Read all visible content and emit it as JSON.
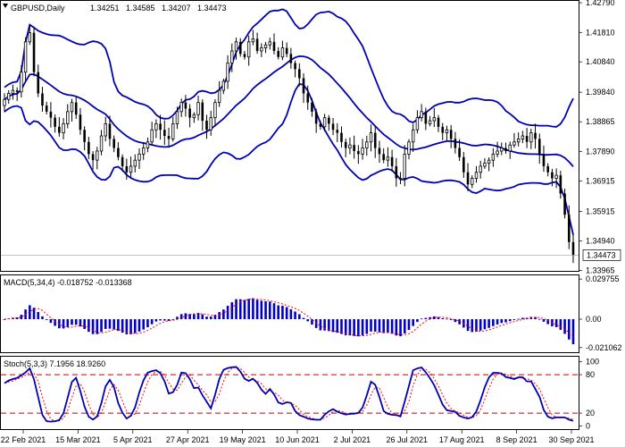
{
  "chart_data": [
    {
      "type": "candlestick",
      "panel": "price",
      "symbol": "GBPUSD,Daily",
      "ohlc_text": [
        "1.34251",
        "1.34585",
        "1.34207",
        "1.34473"
      ],
      "current_price": "1.34473",
      "y_ticks": [
        "1.42790",
        "1.41810",
        "1.40840",
        "1.39840",
        "1.38865",
        "1.37890",
        "1.36915",
        "1.35915",
        "1.34940",
        "1.33965"
      ],
      "ylim": [
        1.3395,
        1.4285
      ],
      "overlay": "Bollinger Bands",
      "closes": [
        1.396,
        1.398,
        1.399,
        1.3985,
        1.405,
        1.415,
        1.418,
        1.405,
        1.398,
        1.394,
        1.392,
        1.39,
        1.387,
        1.385,
        1.388,
        1.392,
        1.395,
        1.391,
        1.386,
        1.382,
        1.378,
        1.376,
        1.379,
        1.384,
        1.388,
        1.383,
        1.38,
        1.377,
        1.374,
        1.372,
        1.374,
        1.376,
        1.378,
        1.38,
        1.382,
        1.386,
        1.388,
        1.386,
        1.384,
        1.383,
        1.388,
        1.392,
        1.395,
        1.393,
        1.39,
        1.391,
        1.395,
        1.389,
        1.386,
        1.39,
        1.395,
        1.399,
        1.402,
        1.408,
        1.412,
        1.415,
        1.411,
        1.41,
        1.415,
        1.416,
        1.412,
        1.413,
        1.414,
        1.415,
        1.412,
        1.41,
        1.413,
        1.411,
        1.408,
        1.406,
        1.403,
        1.398,
        1.395,
        1.392,
        1.388,
        1.387,
        1.39,
        1.388,
        1.386,
        1.385,
        1.382,
        1.38,
        1.381,
        1.379,
        1.378,
        1.38,
        1.382,
        1.385,
        1.38,
        1.378,
        1.376,
        1.377,
        1.374,
        1.37,
        1.37,
        1.378,
        1.382,
        1.386,
        1.39,
        1.392,
        1.388,
        1.389,
        1.39,
        1.387,
        1.385,
        1.386,
        1.383,
        1.38,
        1.377,
        1.372,
        1.368,
        1.37,
        1.372,
        1.374,
        1.375,
        1.376,
        1.378,
        1.379,
        1.38,
        1.379,
        1.381,
        1.382,
        1.383,
        1.384,
        1.382,
        1.385,
        1.383,
        1.378,
        1.374,
        1.372,
        1.37,
        1.371,
        1.365,
        1.358,
        1.349,
        1.3447
      ],
      "chart_pos": [
        0,
        0.05,
        0.1,
        0.15,
        0.19,
        0.24,
        0.29,
        0.33,
        0.38,
        0.42,
        0.47,
        0.52,
        0.56,
        0.61,
        0.66,
        0.7,
        0.75,
        0.8,
        0.84,
        0.89,
        0.94,
        0.98,
        1.03,
        1.07,
        1.12,
        1.17,
        1.21,
        1.26,
        1.31,
        1.35,
        1.4,
        1.45,
        1.49,
        1.54,
        1.59,
        1.63,
        1.68,
        1.72,
        1.77,
        1.82,
        1.86,
        1.91,
        1.96,
        2.0,
        2.05,
        2.1,
        2.14,
        2.19,
        2.24,
        2.28,
        2.33,
        2.37,
        2.42,
        2.47,
        2.51,
        2.56,
        2.61,
        2.65,
        2.7,
        2.75,
        2.79,
        2.84,
        2.89,
        2.93,
        2.98,
        3.02,
        3.07,
        3.12,
        3.16,
        3.21,
        3.26,
        3.3,
        3.35,
        3.4,
        3.44,
        3.49,
        3.54,
        3.58,
        3.63,
        3.67,
        3.72,
        3.77,
        3.81,
        3.86,
        3.91,
        3.95,
        4.0,
        4.05,
        4.09,
        4.14,
        4.19,
        4.23,
        4.28,
        4.32,
        4.37,
        4.42,
        4.46,
        4.51,
        4.56,
        4.6,
        4.65,
        4.7,
        4.74,
        4.79,
        4.84,
        4.88,
        4.93,
        4.97,
        5.02,
        5.07,
        5.11,
        5.16,
        5.21,
        5.25,
        5.3,
        5.35,
        5.39,
        5.44,
        5.49,
        5.53,
        5.58,
        5.62,
        5.67,
        5.72,
        5.76,
        5.81,
        5.86,
        5.9,
        5.95,
        6.0,
        6.04,
        6.09,
        6.14,
        6.18,
        6.23,
        6.27
      ]
    },
    {
      "type": "bar",
      "panel": "macd",
      "label": "MACD(5,34,4) -0.018752 -0.013368",
      "y_ticks": [
        "0.029755",
        "0.00",
        "-0.021062"
      ],
      "ylim": [
        -0.0245,
        0.0325
      ]
    },
    {
      "type": "line",
      "panel": "stochastic",
      "label": "Stoch(5,3,3) 7.1956 18.9260",
      "y_ticks": [
        "100",
        "80",
        "20",
        "0"
      ],
      "ylim": [
        -5,
        108
      ],
      "levels": [
        80,
        20
      ]
    }
  ],
  "x_ticks": [
    "22 Feb 2021",
    "15 Mar 2021",
    "5 Apr 2021",
    "27 Apr 2021",
    "19 May 2021",
    "10 Jun 2021",
    "2 Jul 2021",
    "26 Jul 2021",
    "17 Aug 2021",
    "8 Sep 2021",
    "30 Sep 2021"
  ],
  "colors": {
    "candle": "#000000",
    "bands": "#0000b4",
    "macd_bars": "#0000c8",
    "signal": "#ff0000",
    "grid": "#000000",
    "bg": "#ffffff",
    "price_label_bg": "#ffffff"
  }
}
